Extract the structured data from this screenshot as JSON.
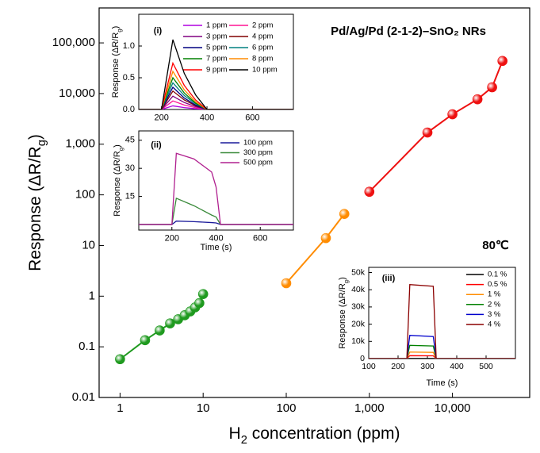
{
  "chart_data": [
    {
      "type": "line",
      "markers": true,
      "title": "Pd/Ag/Pd (2-1-2)–SnO₂ NRs",
      "annotation": "80℃",
      "x_label": {
        "text": "H",
        "sub": "2",
        "end": " concentration (ppm)"
      },
      "y_label": {
        "text": "Response (ΔR/R",
        "sub": "g",
        "end": ")"
      },
      "xlog": true,
      "ylog": true,
      "xlim": [
        0.56,
        85000
      ],
      "ylim": [
        0.01,
        490000
      ],
      "xticks": [
        1,
        10,
        100,
        {
          "value": 1000,
          "label": "1,000"
        },
        {
          "value": 10000,
          "label": "10,000"
        }
      ],
      "yticks": [
        0.01,
        0.1,
        1,
        10,
        100,
        {
          "value": 1000,
          "label": "1,000"
        },
        {
          "value": 10000,
          "label": "10,000"
        },
        {
          "value": 100000,
          "label": "100,000"
        }
      ],
      "series": [
        {
          "color": "#1f9a1f",
          "x": [
            1,
            2,
            3,
            4,
            5,
            6,
            7,
            8,
            9,
            10
          ],
          "values": [
            0.057,
            0.135,
            0.21,
            0.29,
            0.35,
            0.42,
            0.5,
            0.6,
            0.73,
            1.1
          ]
        },
        {
          "color": "#ff8c00",
          "x": [
            100,
            300,
            500
          ],
          "values": [
            1.8,
            14,
            42
          ]
        },
        {
          "color": "#ee1111",
          "x": [
            1000,
            5000,
            10000,
            20000,
            30000,
            40000
          ],
          "values": [
            115,
            1700,
            3900,
            7700,
            13300,
            44000
          ]
        }
      ]
    },
    {
      "type": "line",
      "tag": "(i)",
      "y_label": {
        "text": "Response (ΔR/R",
        "sub": "g",
        "end": ")"
      },
      "xlim": [
        100,
        780
      ],
      "ylim": [
        0,
        1.5
      ],
      "xticks": [
        200,
        400,
        600
      ],
      "yticks": [
        {
          "value": 0,
          "label": "0.0"
        },
        0.5,
        {
          "value": 1,
          "label": "1.0"
        }
      ],
      "x": [
        100,
        200,
        250,
        300,
        350,
        400,
        780
      ],
      "series": [
        {
          "name": "1 ppm",
          "color": "#b000e0",
          "values": [
            0,
            0,
            0.057,
            0.03,
            0.012,
            0,
            0
          ]
        },
        {
          "name": "2 ppm",
          "color": "#ff1493",
          "values": [
            0,
            0,
            0.135,
            0.07,
            0.028,
            0,
            0
          ]
        },
        {
          "name": "3 ppm",
          "color": "#800080",
          "values": [
            0,
            0,
            0.21,
            0.11,
            0.045,
            0,
            0
          ]
        },
        {
          "name": "4 ppm",
          "color": "#800000",
          "values": [
            0,
            0,
            0.29,
            0.15,
            0.06,
            0,
            0
          ]
        },
        {
          "name": "5 ppm",
          "color": "#000080",
          "values": [
            0,
            0,
            0.35,
            0.18,
            0.07,
            0,
            0
          ]
        },
        {
          "name": "6 ppm",
          "color": "#008080",
          "values": [
            0,
            0,
            0.42,
            0.22,
            0.09,
            0,
            0
          ]
        },
        {
          "name": "7 ppm",
          "color": "#008000",
          "values": [
            0,
            0,
            0.5,
            0.26,
            0.1,
            0,
            0
          ]
        },
        {
          "name": "8 ppm",
          "color": "#ff8c00",
          "values": [
            0,
            0,
            0.6,
            0.31,
            0.12,
            0,
            0
          ]
        },
        {
          "name": "9 ppm",
          "color": "#ff0000",
          "values": [
            0,
            0,
            0.73,
            0.38,
            0.15,
            0,
            0
          ]
        },
        {
          "name": "10 ppm",
          "color": "#000000",
          "values": [
            0,
            0,
            1.1,
            0.57,
            0.23,
            0,
            0
          ]
        }
      ]
    },
    {
      "type": "line",
      "tag": "(ii)",
      "x_label": {
        "text": "Time (s)"
      },
      "y_label": {
        "text": "Response (ΔR/R",
        "sub": "g",
        "end": ")"
      },
      "xlim": [
        50,
        750
      ],
      "ylim": [
        -3,
        50
      ],
      "xticks": [
        200,
        400,
        600
      ],
      "yticks": [
        15,
        30,
        45
      ],
      "x": [
        50,
        200,
        220,
        300,
        380,
        400,
        420,
        750
      ],
      "series": [
        {
          "name": "100 ppm",
          "color": "#1a1a9a",
          "values": [
            0,
            0,
            1.8,
            1.5,
            1,
            0.8,
            0,
            0
          ]
        },
        {
          "name": "300 ppm",
          "color": "#3a8a3a",
          "values": [
            0,
            0,
            14,
            10,
            5,
            4,
            0,
            0
          ]
        },
        {
          "name": "500 ppm",
          "color": "#b0208f",
          "values": [
            0,
            0,
            38,
            35,
            28,
            20,
            0,
            0
          ]
        }
      ]
    },
    {
      "type": "line",
      "tag": "(iii)",
      "x_label": {
        "text": "Time (s)"
      },
      "y_label": {
        "text": "Response (ΔR/R",
        "sub": "g",
        "end": ")"
      },
      "xlim": [
        100,
        600
      ],
      "ylim": [
        0,
        53000
      ],
      "xticks": [
        100,
        200,
        300,
        400,
        500
      ],
      "yticks": [
        0,
        {
          "value": 10000,
          "label": "10k"
        },
        {
          "value": 20000,
          "label": "20k"
        },
        {
          "value": 30000,
          "label": "30k"
        },
        {
          "value": 40000,
          "label": "40k"
        },
        {
          "value": 50000,
          "label": "50k"
        }
      ],
      "x": [
        100,
        230,
        240,
        320,
        330,
        600
      ],
      "series": [
        {
          "name": "0.1 %",
          "color": "#000000",
          "values": [
            0,
            0,
            115,
            110,
            0,
            0
          ]
        },
        {
          "name": "0.5 %",
          "color": "#ff0000",
          "values": [
            0,
            0,
            1700,
            1600,
            0,
            0
          ]
        },
        {
          "name": "1 %",
          "color": "#ff8c00",
          "values": [
            0,
            0,
            3800,
            3600,
            0,
            0
          ]
        },
        {
          "name": "2 %",
          "color": "#008000",
          "values": [
            0,
            0,
            7700,
            7300,
            0,
            0
          ]
        },
        {
          "name": "3 %",
          "color": "#0000cc",
          "values": [
            0,
            0,
            13500,
            12800,
            0,
            0
          ]
        },
        {
          "name": "4 %",
          "color": "#8b0000",
          "values": [
            0,
            0,
            43000,
            42000,
            0,
            0
          ]
        }
      ]
    }
  ]
}
